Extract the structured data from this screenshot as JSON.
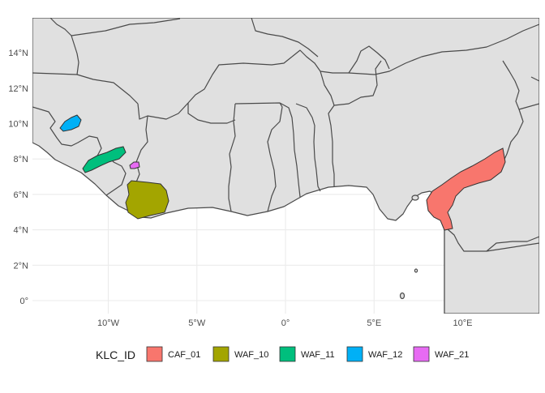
{
  "map": {
    "x_range": [
      -14.5,
      14.5
    ],
    "y_range": [
      -0.5,
      16.0
    ],
    "grid": true,
    "legend_position": "bottom",
    "colors": {
      "land": "#e0e0e0",
      "border": "#4a4a4a",
      "ocean": "#ffffff",
      "grid": "#ebebeb"
    },
    "x_ticks": [
      {
        "value": -10,
        "label": "10°W"
      },
      {
        "value": -5,
        "label": "5°W"
      },
      {
        "value": 0,
        "label": "0°"
      },
      {
        "value": 5,
        "label": "5°E"
      },
      {
        "value": 10,
        "label": "10°E"
      }
    ],
    "y_ticks": [
      {
        "value": 0,
        "label": "0°"
      },
      {
        "value": 2,
        "label": "2°N"
      },
      {
        "value": 4,
        "label": "4°N"
      },
      {
        "value": 6,
        "label": "6°N"
      },
      {
        "value": 8,
        "label": "8°N"
      },
      {
        "value": 10,
        "label": "10°N"
      },
      {
        "value": 12,
        "label": "12°N"
      },
      {
        "value": 14,
        "label": "14°N"
      }
    ]
  },
  "legend": {
    "title": "KLC_ID",
    "items": [
      {
        "id": "CAF_01",
        "label": "CAF_01",
        "color": "#f8766d"
      },
      {
        "id": "WAF_10",
        "label": "WAF_10",
        "color": "#a3a500"
      },
      {
        "id": "WAF_11",
        "label": "WAF_11",
        "color": "#00bf7d"
      },
      {
        "id": "WAF_12",
        "label": "WAF_12",
        "color": "#00b0f6"
      },
      {
        "id": "WAF_21",
        "label": "WAF_21",
        "color": "#e76bf3"
      }
    ]
  }
}
